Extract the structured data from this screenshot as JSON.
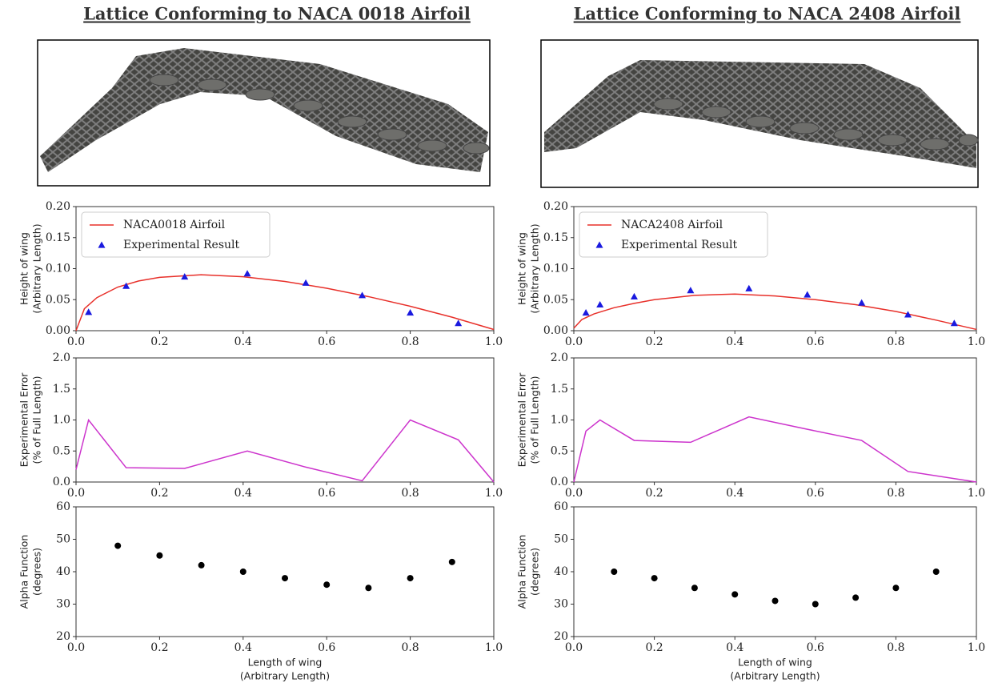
{
  "chart_data": [
    {
      "type": "line",
      "title": "Lattice Conforming to NACA 0018 Airfoil",
      "ylabel": [
        "Height of wing",
        "(Arbitrary Length)"
      ],
      "legend": "upper left",
      "xlim": [
        0,
        1
      ],
      "ylim": [
        0,
        0.2
      ],
      "xticks": [
        {
          "value": 0,
          "label": "0.0"
        },
        0.2,
        0.4,
        0.6,
        0.8,
        {
          "value": 1,
          "label": "1.0"
        }
      ],
      "yticks": [
        {
          "value": 0,
          "label": "0.00"
        },
        0.05,
        {
          "value": 0.1,
          "label": "0.10"
        },
        0.15,
        {
          "value": 0.2,
          "label": "0.20"
        }
      ],
      "series": [
        {
          "name": "NACA0018 Airfoil",
          "style": "line",
          "color": "#e8302a",
          "x": [
            0,
            0.02,
            0.05,
            0.1,
            0.15,
            0.2,
            0.3,
            0.4,
            0.5,
            0.6,
            0.7,
            0.8,
            0.9,
            1.0
          ],
          "values": [
            0,
            0.0354,
            0.0533,
            0.0703,
            0.0802,
            0.086,
            0.0901,
            0.087,
            0.0794,
            0.0684,
            0.0549,
            0.0394,
            0.0218,
            0.0019
          ]
        },
        {
          "name": "Experimental Result",
          "style": "triangle",
          "color": "#1a1adf",
          "x": [
            0.03,
            0.12,
            0.26,
            0.41,
            0.55,
            0.685,
            0.8,
            0.915
          ],
          "values": [
            0.03,
            0.072,
            0.087,
            0.092,
            0.077,
            0.057,
            0.029,
            0.012
          ]
        }
      ]
    },
    {
      "type": "line",
      "ylabel": [
        "Experimental Error",
        "(% of Full Length)"
      ],
      "xlim": [
        0,
        1
      ],
      "ylim": [
        0,
        2
      ],
      "xticks": [
        {
          "value": 0,
          "label": "0.0"
        },
        0.2,
        0.4,
        0.6,
        0.8,
        {
          "value": 1,
          "label": "1.0"
        }
      ],
      "yticks": [
        {
          "value": 0,
          "label": "0.0"
        },
        0.5,
        {
          "value": 1,
          "label": "1.0"
        },
        1.5,
        {
          "value": 2,
          "label": "2.0"
        }
      ],
      "series": [
        {
          "style": "line",
          "color": "#cc33cc",
          "x": [
            0,
            0.03,
            0.12,
            0.26,
            0.41,
            0.55,
            0.685,
            0.8,
            0.915,
            1.0
          ],
          "values": [
            0.2,
            1.0,
            0.23,
            0.22,
            0.5,
            0.24,
            0.02,
            1.0,
            0.68,
            0
          ]
        }
      ]
    },
    {
      "type": "scatter",
      "ylabel": [
        "Alpha Function",
        "(degrees)"
      ],
      "xlabel": [
        "Length of wing",
        "(Arbitrary Length)"
      ],
      "xlim": [
        0,
        1
      ],
      "ylim": [
        20,
        60
      ],
      "xticks": [
        {
          "value": 0,
          "label": "0.0"
        },
        0.2,
        0.4,
        0.6,
        0.8,
        {
          "value": 1,
          "label": "1.0"
        }
      ],
      "yticks": [
        20,
        30,
        40,
        50,
        60
      ],
      "series": [
        {
          "style": "dot",
          "color": "#000000",
          "x": [
            0.1,
            0.2,
            0.3,
            0.4,
            0.5,
            0.6,
            0.7,
            0.8,
            0.9
          ],
          "values": [
            48,
            45,
            42,
            40,
            38,
            36,
            35,
            38,
            43
          ]
        }
      ]
    },
    {
      "type": "line",
      "title": "Lattice Conforming to NACA 2408 Airfoil",
      "ylabel": [
        "Height of wing",
        "(Arbitrary Length)"
      ],
      "legend": "upper left",
      "xlim": [
        0,
        1
      ],
      "ylim": [
        0,
        0.2
      ],
      "xticks": [
        {
          "value": 0,
          "label": "0.0"
        },
        0.2,
        0.4,
        0.6,
        0.8,
        {
          "value": 1,
          "label": "1.0"
        }
      ],
      "yticks": [
        {
          "value": 0,
          "label": "0.00"
        },
        0.05,
        {
          "value": 0.1,
          "label": "0.10"
        },
        0.15,
        {
          "value": 0.2,
          "label": "0.20"
        }
      ],
      "series": [
        {
          "name": "NACA2408 Airfoil",
          "style": "line",
          "color": "#e8302a",
          "x": [
            0,
            0.02,
            0.05,
            0.1,
            0.15,
            0.2,
            0.3,
            0.4,
            0.5,
            0.6,
            0.7,
            0.8,
            0.9,
            1.0
          ],
          "values": [
            0.004,
            0.018,
            0.027,
            0.037,
            0.044,
            0.05,
            0.057,
            0.059,
            0.056,
            0.05,
            0.042,
            0.031,
            0.017,
            0.002
          ]
        },
        {
          "name": "Experimental Result",
          "style": "triangle",
          "color": "#1a1adf",
          "x": [
            0.03,
            0.065,
            0.15,
            0.29,
            0.435,
            0.58,
            0.715,
            0.83,
            0.945
          ],
          "values": [
            0.029,
            0.042,
            0.055,
            0.065,
            0.068,
            0.058,
            0.045,
            0.026,
            0.012
          ]
        }
      ]
    },
    {
      "type": "line",
      "ylabel": [
        "Experimental Error",
        "(% of Full Length)"
      ],
      "xlim": [
        0,
        1
      ],
      "ylim": [
        0,
        2
      ],
      "xticks": [
        {
          "value": 0,
          "label": "0.0"
        },
        0.2,
        0.4,
        0.6,
        0.8,
        {
          "value": 1,
          "label": "1.0"
        }
      ],
      "yticks": [
        {
          "value": 0,
          "label": "0.0"
        },
        0.5,
        {
          "value": 1,
          "label": "1.0"
        },
        1.5,
        {
          "value": 2,
          "label": "2.0"
        }
      ],
      "series": [
        {
          "style": "line",
          "color": "#cc33cc",
          "x": [
            0,
            0.03,
            0.065,
            0.15,
            0.29,
            0.435,
            0.58,
            0.715,
            0.83,
            1.0
          ],
          "values": [
            0,
            0.82,
            1.0,
            0.67,
            0.64,
            1.05,
            0.85,
            0.67,
            0.17,
            0
          ]
        }
      ]
    },
    {
      "type": "scatter",
      "ylabel": [
        "Alpha Function",
        "(degrees)"
      ],
      "xlabel": [
        "Length of wing",
        "(Arbitrary Length)"
      ],
      "xlim": [
        0,
        1
      ],
      "ylim": [
        20,
        60
      ],
      "xticks": [
        {
          "value": 0,
          "label": "0.0"
        },
        0.2,
        0.4,
        0.6,
        0.8,
        {
          "value": 1,
          "label": "1.0"
        }
      ],
      "yticks": [
        20,
        30,
        40,
        50,
        60
      ],
      "series": [
        {
          "style": "dot",
          "color": "#000000",
          "x": [
            0.1,
            0.2,
            0.3,
            0.4,
            0.5,
            0.6,
            0.7,
            0.8,
            0.9
          ],
          "values": [
            40,
            38,
            35,
            33,
            31,
            30,
            32,
            35,
            40
          ]
        }
      ]
    }
  ]
}
